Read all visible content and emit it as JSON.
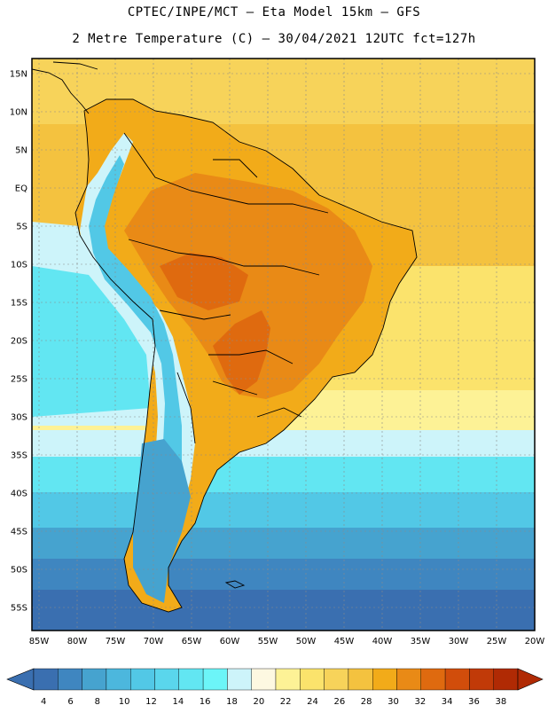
{
  "title": {
    "line1": "CPTEC/INPE/MCT –  Eta Model 15km – GFS",
    "line2": "2 Metre Temperature (C) – 30/04/2021 12UTC fct=127h"
  },
  "axes": {
    "lat_labels": [
      "15N",
      "10N",
      "5N",
      "EQ",
      "5S",
      "10S",
      "15S",
      "20S",
      "25S",
      "30S",
      "35S",
      "40S",
      "45S",
      "50S",
      "55S"
    ],
    "lon_labels": [
      "85W",
      "80W",
      "75W",
      "70W",
      "65W",
      "60W",
      "55W",
      "50W",
      "45W",
      "40W",
      "35W",
      "30W",
      "25W",
      "20W"
    ]
  },
  "colorbar": {
    "labels": [
      "4",
      "6",
      "8",
      "10",
      "12",
      "14",
      "16",
      "18",
      "20",
      "22",
      "24",
      "26",
      "28",
      "30",
      "32",
      "34",
      "36",
      "38"
    ],
    "colors": [
      "#3a6fb0",
      "#3f86c0",
      "#46a3cf",
      "#4cb7dd",
      "#52c8e6",
      "#5ad6ec",
      "#62e6f2",
      "#6cf5f8",
      "#cdf4fa",
      "#fdf8e1",
      "#fdf296",
      "#fbe36c",
      "#f7d35a",
      "#f4c23f",
      "#f2ab19",
      "#e98a16",
      "#df6a0f",
      "#d14d0b",
      "#c13a08",
      "#b02a04"
    ],
    "low_color": "#3a6fb0",
    "high_color": "#b02a04"
  },
  "palette": {
    "ocean_north": "#f7d35a",
    "ocean_tropical": "#f4c23f",
    "continent_hot": "#f2ab19",
    "continent_hotter": "#e98a16",
    "core_hot": "#df6a0f",
    "south_atlantic_warm": "#fbe36c",
    "south_atlantic_mild": "#fdf296",
    "cool_band": "#cdf4fa",
    "cold_cyan": "#62e6f2",
    "cold_blue1": "#52c8e6",
    "cold_blue2": "#46a3cf",
    "cold_blue3": "#3f86c0",
    "cold_blue4": "#3a6fb0",
    "grid": "#8a8a8a",
    "coast": "#000000"
  }
}
